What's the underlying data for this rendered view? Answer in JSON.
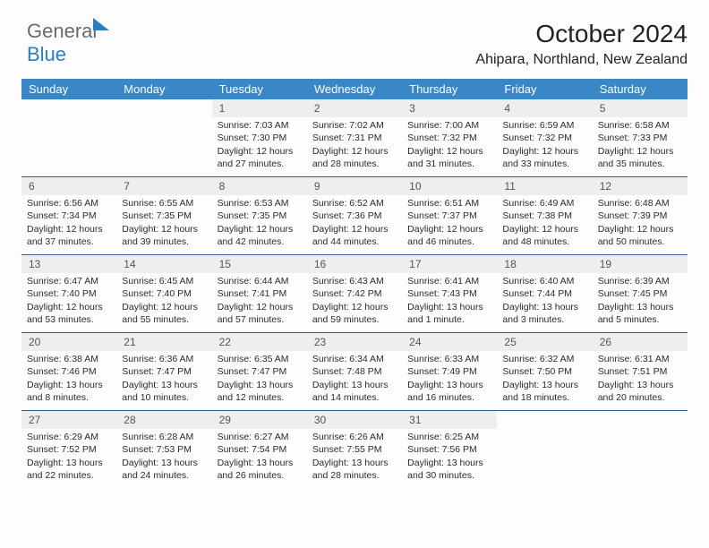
{
  "brand": {
    "part1": "General",
    "part2": "Blue"
  },
  "title": "October 2024",
  "location": "Ahipara, Northland, New Zealand",
  "colors": {
    "header_bg": "#3a87c8",
    "daynum_bg": "#eeeeee",
    "week_border": "#2f5f8a",
    "brand_gray": "#6a6a6a",
    "brand_blue": "#2a7fc2"
  },
  "days_of_week": [
    "Sunday",
    "Monday",
    "Tuesday",
    "Wednesday",
    "Thursday",
    "Friday",
    "Saturday"
  ],
  "weeks": [
    [
      null,
      null,
      {
        "n": "1",
        "sr": "7:03 AM",
        "ss": "7:30 PM",
        "dl1": "Daylight: 12 hours",
        "dl2": "and 27 minutes."
      },
      {
        "n": "2",
        "sr": "7:02 AM",
        "ss": "7:31 PM",
        "dl1": "Daylight: 12 hours",
        "dl2": "and 28 minutes."
      },
      {
        "n": "3",
        "sr": "7:00 AM",
        "ss": "7:32 PM",
        "dl1": "Daylight: 12 hours",
        "dl2": "and 31 minutes."
      },
      {
        "n": "4",
        "sr": "6:59 AM",
        "ss": "7:32 PM",
        "dl1": "Daylight: 12 hours",
        "dl2": "and 33 minutes."
      },
      {
        "n": "5",
        "sr": "6:58 AM",
        "ss": "7:33 PM",
        "dl1": "Daylight: 12 hours",
        "dl2": "and 35 minutes."
      }
    ],
    [
      {
        "n": "6",
        "sr": "6:56 AM",
        "ss": "7:34 PM",
        "dl1": "Daylight: 12 hours",
        "dl2": "and 37 minutes."
      },
      {
        "n": "7",
        "sr": "6:55 AM",
        "ss": "7:35 PM",
        "dl1": "Daylight: 12 hours",
        "dl2": "and 39 minutes."
      },
      {
        "n": "8",
        "sr": "6:53 AM",
        "ss": "7:35 PM",
        "dl1": "Daylight: 12 hours",
        "dl2": "and 42 minutes."
      },
      {
        "n": "9",
        "sr": "6:52 AM",
        "ss": "7:36 PM",
        "dl1": "Daylight: 12 hours",
        "dl2": "and 44 minutes."
      },
      {
        "n": "10",
        "sr": "6:51 AM",
        "ss": "7:37 PM",
        "dl1": "Daylight: 12 hours",
        "dl2": "and 46 minutes."
      },
      {
        "n": "11",
        "sr": "6:49 AM",
        "ss": "7:38 PM",
        "dl1": "Daylight: 12 hours",
        "dl2": "and 48 minutes."
      },
      {
        "n": "12",
        "sr": "6:48 AM",
        "ss": "7:39 PM",
        "dl1": "Daylight: 12 hours",
        "dl2": "and 50 minutes."
      }
    ],
    [
      {
        "n": "13",
        "sr": "6:47 AM",
        "ss": "7:40 PM",
        "dl1": "Daylight: 12 hours",
        "dl2": "and 53 minutes."
      },
      {
        "n": "14",
        "sr": "6:45 AM",
        "ss": "7:40 PM",
        "dl1": "Daylight: 12 hours",
        "dl2": "and 55 minutes."
      },
      {
        "n": "15",
        "sr": "6:44 AM",
        "ss": "7:41 PM",
        "dl1": "Daylight: 12 hours",
        "dl2": "and 57 minutes."
      },
      {
        "n": "16",
        "sr": "6:43 AM",
        "ss": "7:42 PM",
        "dl1": "Daylight: 12 hours",
        "dl2": "and 59 minutes."
      },
      {
        "n": "17",
        "sr": "6:41 AM",
        "ss": "7:43 PM",
        "dl1": "Daylight: 13 hours",
        "dl2": "and 1 minute."
      },
      {
        "n": "18",
        "sr": "6:40 AM",
        "ss": "7:44 PM",
        "dl1": "Daylight: 13 hours",
        "dl2": "and 3 minutes."
      },
      {
        "n": "19",
        "sr": "6:39 AM",
        "ss": "7:45 PM",
        "dl1": "Daylight: 13 hours",
        "dl2": "and 5 minutes."
      }
    ],
    [
      {
        "n": "20",
        "sr": "6:38 AM",
        "ss": "7:46 PM",
        "dl1": "Daylight: 13 hours",
        "dl2": "and 8 minutes."
      },
      {
        "n": "21",
        "sr": "6:36 AM",
        "ss": "7:47 PM",
        "dl1": "Daylight: 13 hours",
        "dl2": "and 10 minutes."
      },
      {
        "n": "22",
        "sr": "6:35 AM",
        "ss": "7:47 PM",
        "dl1": "Daylight: 13 hours",
        "dl2": "and 12 minutes."
      },
      {
        "n": "23",
        "sr": "6:34 AM",
        "ss": "7:48 PM",
        "dl1": "Daylight: 13 hours",
        "dl2": "and 14 minutes."
      },
      {
        "n": "24",
        "sr": "6:33 AM",
        "ss": "7:49 PM",
        "dl1": "Daylight: 13 hours",
        "dl2": "and 16 minutes."
      },
      {
        "n": "25",
        "sr": "6:32 AM",
        "ss": "7:50 PM",
        "dl1": "Daylight: 13 hours",
        "dl2": "and 18 minutes."
      },
      {
        "n": "26",
        "sr": "6:31 AM",
        "ss": "7:51 PM",
        "dl1": "Daylight: 13 hours",
        "dl2": "and 20 minutes."
      }
    ],
    [
      {
        "n": "27",
        "sr": "6:29 AM",
        "ss": "7:52 PM",
        "dl1": "Daylight: 13 hours",
        "dl2": "and 22 minutes."
      },
      {
        "n": "28",
        "sr": "6:28 AM",
        "ss": "7:53 PM",
        "dl1": "Daylight: 13 hours",
        "dl2": "and 24 minutes."
      },
      {
        "n": "29",
        "sr": "6:27 AM",
        "ss": "7:54 PM",
        "dl1": "Daylight: 13 hours",
        "dl2": "and 26 minutes."
      },
      {
        "n": "30",
        "sr": "6:26 AM",
        "ss": "7:55 PM",
        "dl1": "Daylight: 13 hours",
        "dl2": "and 28 minutes."
      },
      {
        "n": "31",
        "sr": "6:25 AM",
        "ss": "7:56 PM",
        "dl1": "Daylight: 13 hours",
        "dl2": "and 30 minutes."
      },
      null,
      null
    ]
  ],
  "labels": {
    "sunrise": "Sunrise: ",
    "sunset": "Sunset: "
  }
}
